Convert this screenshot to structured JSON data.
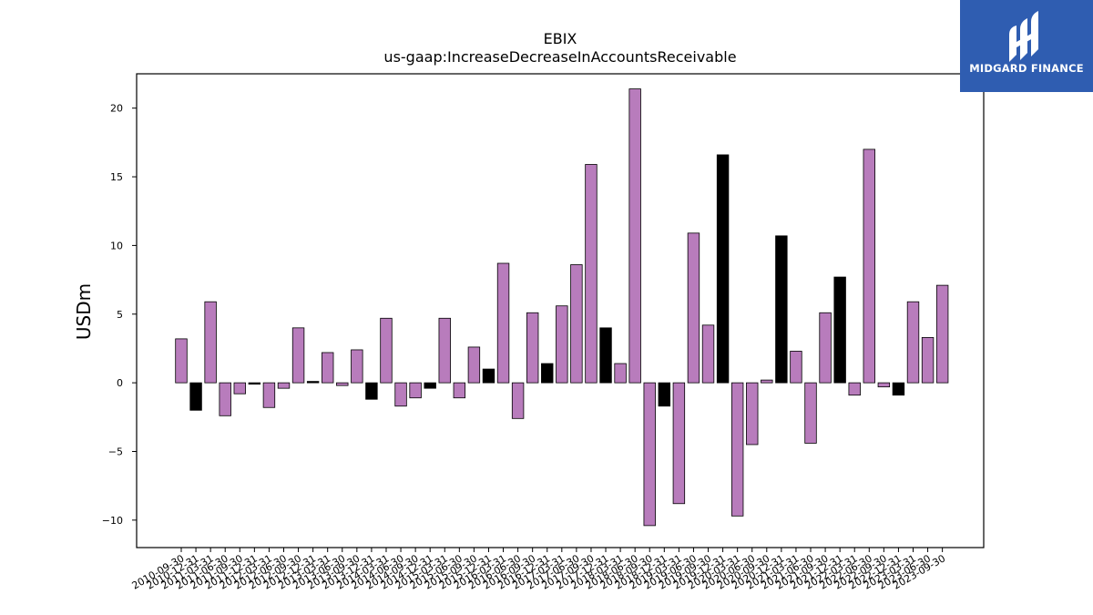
{
  "logo": {
    "text": "MIDGARD FINANCE",
    "background": "#2f5db1",
    "icon": "midgard-logo-icon"
  },
  "chart_data": {
    "type": "bar",
    "title": "EBIX",
    "subtitle": "us-gaap:IncreaseDecreaseInAccountsReceivable",
    "ylabel": "USDm",
    "xlabel": "",
    "ylim": [
      -12,
      22.5
    ],
    "yticks": [
      -10,
      -5,
      0,
      5,
      10,
      15,
      20
    ],
    "grid": false,
    "colors": {
      "Q1-Q3": "#b87cbc",
      "FY": "#000000"
    },
    "categories": [
      "2010-09-30",
      "2010-12-31",
      "2011-03-31",
      "2011-06-30",
      "2011-09-30",
      "2011-12-31",
      "2012-03-31",
      "2012-06-30",
      "2012-09-30",
      "2012-12-31",
      "2013-03-31",
      "2013-06-30",
      "2013-09-30",
      "2013-12-31",
      "2014-03-31",
      "2014-06-30",
      "2014-09-30",
      "2014-12-31",
      "2015-03-31",
      "2015-06-30",
      "2015-09-30",
      "2015-12-31",
      "2016-03-31",
      "2016-06-30",
      "2016-09-30",
      "2016-12-31",
      "2017-03-31",
      "2017-06-30",
      "2017-09-30",
      "2017-12-31",
      "2018-03-31",
      "2018-06-30",
      "2018-09-30",
      "2018-12-31",
      "2019-03-31",
      "2019-06-30",
      "2019-09-30",
      "2019-12-31",
      "2020-03-31",
      "2020-06-30",
      "2020-09-30",
      "2020-12-31",
      "2021-03-31",
      "2021-06-30",
      "2021-09-30",
      "2021-12-31",
      "2022-03-31",
      "2022-06-30",
      "2022-09-30",
      "2022-12-31",
      "2023-03-31",
      "2023-06-30",
      "2023-09-30"
    ],
    "values": [
      3.2,
      -2.0,
      5.9,
      -2.4,
      -0.8,
      -0.1,
      -1.8,
      -0.4,
      4.0,
      0.1,
      2.2,
      -0.2,
      2.4,
      -1.2,
      4.7,
      -1.7,
      -1.1,
      -0.4,
      4.7,
      -1.1,
      2.6,
      1.0,
      8.7,
      -2.6,
      5.1,
      1.4,
      5.6,
      8.6,
      15.9,
      4.0,
      1.4,
      21.4,
      -10.4,
      -1.7,
      -8.8,
      10.9,
      4.2,
      16.6,
      -9.7,
      -4.5,
      0.2,
      10.7,
      2.3,
      -4.4,
      5.1,
      7.7,
      -0.9,
      17.0,
      -0.3,
      -0.9,
      5.9,
      3.3,
      7.1
    ],
    "fiscal_year_end": [
      false,
      true,
      false,
      false,
      false,
      true,
      false,
      false,
      false,
      true,
      false,
      false,
      false,
      true,
      false,
      false,
      false,
      true,
      false,
      false,
      false,
      true,
      false,
      false,
      false,
      true,
      false,
      false,
      false,
      true,
      false,
      false,
      false,
      true,
      false,
      false,
      false,
      true,
      false,
      false,
      false,
      true,
      false,
      false,
      false,
      true,
      false,
      false,
      false,
      true,
      false,
      false,
      false
    ]
  }
}
